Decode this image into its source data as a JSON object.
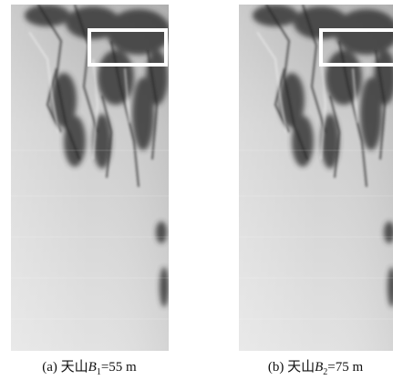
{
  "figure": {
    "panels": [
      {
        "caption": {
          "label": "(a) 天山",
          "variable": "B",
          "subscript": "1",
          "rest": "=55 m"
        }
      },
      {
        "caption": {
          "label": "(b) 天山",
          "variable": "B",
          "subscript": "2",
          "rest": "=75 m"
        }
      }
    ]
  }
}
